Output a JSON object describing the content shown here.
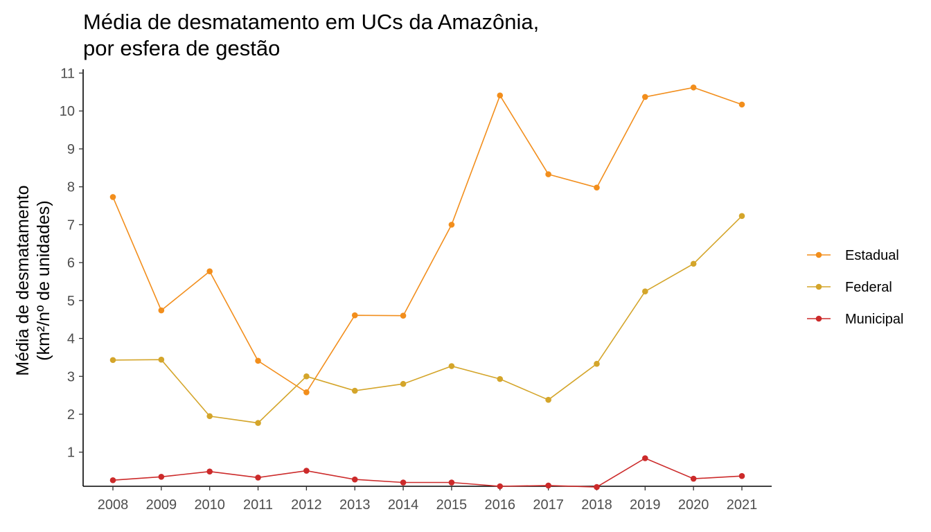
{
  "chart_data": {
    "type": "line",
    "title_lines": [
      "Média de desmatamento em UCs da Amazônia,",
      "por esfera de gestão"
    ],
    "xlabel": "",
    "ylabel_lines": [
      "Média de desmatamento",
      "(km²/nº de unidades)"
    ],
    "x": [
      "2008",
      "2009",
      "2010",
      "2011",
      "2012",
      "2013",
      "2014",
      "2015",
      "2016",
      "2017",
      "2018",
      "2019",
      "2020",
      "2021"
    ],
    "y_ticks": [
      "1",
      "2",
      "3",
      "4",
      "5",
      "6",
      "7",
      "8",
      "9",
      "10",
      "11"
    ],
    "ylim": [
      0.1,
      11.1
    ],
    "grid": false,
    "legend_position": "right",
    "series": [
      {
        "name": "Estadual",
        "color": "#F28E1C",
        "values": [
          7.73,
          4.74,
          5.77,
          3.41,
          2.58,
          4.61,
          4.6,
          7.0,
          10.41,
          8.33,
          7.98,
          10.37,
          10.62,
          10.17
        ]
      },
      {
        "name": "Federal",
        "color": "#D4A52A",
        "values": [
          3.43,
          3.44,
          1.95,
          1.77,
          3.0,
          2.62,
          2.8,
          3.27,
          2.93,
          2.38,
          3.33,
          5.24,
          5.97,
          7.23
        ]
      },
      {
        "name": "Municipal",
        "color": "#CC2A2A",
        "values": [
          0.26,
          0.35,
          0.49,
          0.33,
          0.51,
          0.28,
          0.2,
          0.2,
          0.1,
          0.12,
          0.08,
          0.84,
          0.3,
          0.37
        ]
      }
    ]
  }
}
